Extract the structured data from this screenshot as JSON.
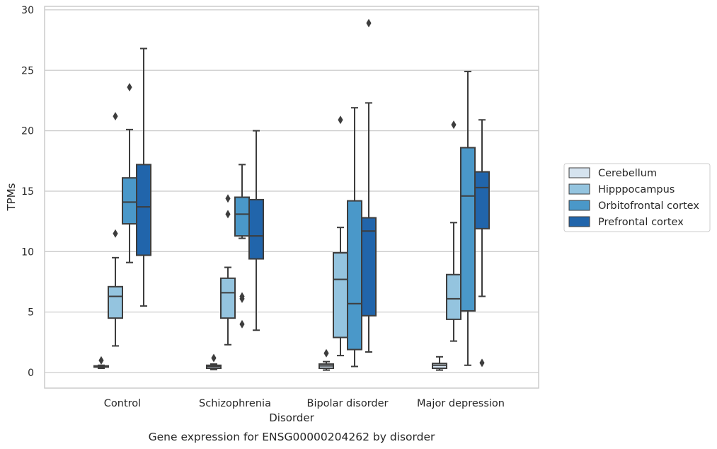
{
  "chart_data": {
    "type": "box",
    "title": "Gene expression for ENSG00000204262 by disorder",
    "xlabel": "Disorder",
    "ylabel": "TPMs",
    "ylim": [
      -1.2,
      30.4
    ],
    "yticks": [
      0,
      5,
      10,
      15,
      20,
      25,
      30
    ],
    "grid": "horizontal",
    "legend_position": "right",
    "categories": [
      "Control",
      "Schizophrenia",
      "Bipolar disorder",
      "Major depression"
    ],
    "series": [
      {
        "name": "Cerebellum",
        "color": "#d5e3ef",
        "boxes": [
          {
            "whisker_low": 0.35,
            "q1": 0.45,
            "median": 0.5,
            "q3": 0.55,
            "whisker_high": 0.6,
            "outliers": [
              1.0
            ]
          },
          {
            "whisker_low": 0.25,
            "q1": 0.35,
            "median": 0.5,
            "q3": 0.6,
            "whisker_high": 0.7,
            "outliers": [
              1.2
            ]
          },
          {
            "whisker_low": 0.2,
            "q1": 0.35,
            "median": 0.55,
            "q3": 0.7,
            "whisker_high": 0.9,
            "outliers": [
              1.6
            ]
          },
          {
            "whisker_low": 0.2,
            "q1": 0.35,
            "median": 0.6,
            "q3": 0.75,
            "whisker_high": 1.3,
            "outliers": []
          }
        ]
      },
      {
        "name": "Hipppocampus",
        "color": "#94c4df",
        "boxes": [
          {
            "whisker_low": 2.2,
            "q1": 4.5,
            "median": 6.3,
            "q3": 7.1,
            "whisker_high": 9.5,
            "outliers": [
              11.5,
              21.2
            ]
          },
          {
            "whisker_low": 2.3,
            "q1": 4.5,
            "median": 6.6,
            "q3": 7.8,
            "whisker_high": 8.7,
            "outliers": [
              13.1,
              14.4
            ]
          },
          {
            "whisker_low": 1.4,
            "q1": 2.9,
            "median": 7.7,
            "q3": 9.9,
            "whisker_high": 12.0,
            "outliers": [
              20.9
            ]
          },
          {
            "whisker_low": 2.6,
            "q1": 4.4,
            "median": 6.1,
            "q3": 8.1,
            "whisker_high": 12.4,
            "outliers": [
              20.5
            ]
          }
        ]
      },
      {
        "name": "Orbitofrontal cortex",
        "color": "#4a98c9",
        "boxes": [
          {
            "whisker_low": 9.1,
            "q1": 12.3,
            "median": 14.1,
            "q3": 16.1,
            "whisker_high": 20.1,
            "outliers": [
              23.6
            ]
          },
          {
            "whisker_low": 11.1,
            "q1": 11.3,
            "median": 13.1,
            "q3": 14.5,
            "whisker_high": 17.2,
            "outliers": [
              4.0,
              6.1,
              6.3
            ]
          },
          {
            "whisker_low": 0.5,
            "q1": 1.9,
            "median": 5.7,
            "q3": 14.2,
            "whisker_high": 21.9,
            "outliers": []
          },
          {
            "whisker_low": 0.6,
            "q1": 5.1,
            "median": 14.6,
            "q3": 18.6,
            "whisker_high": 24.9,
            "outliers": []
          }
        ]
      },
      {
        "name": "Prefrontal cortex",
        "color": "#2165ab",
        "boxes": [
          {
            "whisker_low": 5.5,
            "q1": 9.7,
            "median": 13.7,
            "q3": 17.2,
            "whisker_high": 26.8,
            "outliers": []
          },
          {
            "whisker_low": 3.5,
            "q1": 9.4,
            "median": 11.3,
            "q3": 14.3,
            "whisker_high": 20.0,
            "outliers": []
          },
          {
            "whisker_low": 1.7,
            "q1": 4.7,
            "median": 11.7,
            "q3": 12.8,
            "whisker_high": 22.3,
            "outliers": [
              28.9
            ]
          },
          {
            "whisker_low": 6.3,
            "q1": 11.9,
            "median": 15.3,
            "q3": 16.6,
            "whisker_high": 20.9,
            "outliers": [
              0.8
            ]
          }
        ]
      }
    ]
  }
}
